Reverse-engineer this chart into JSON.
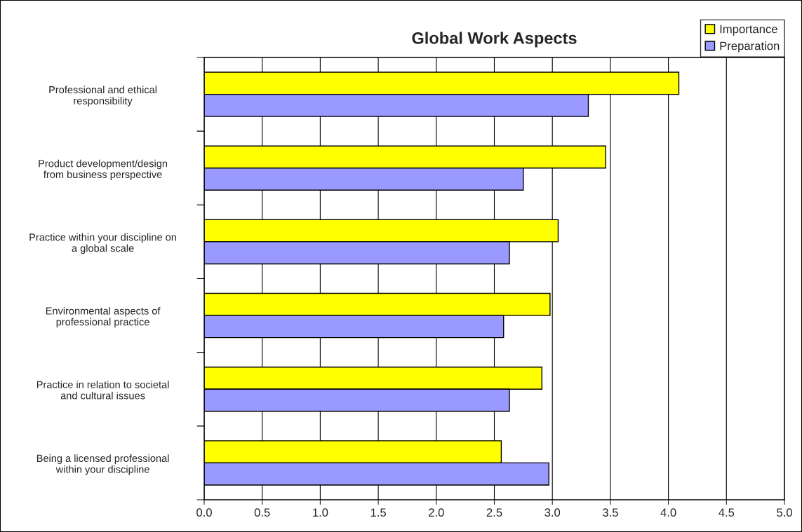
{
  "chart_data": {
    "type": "bar",
    "orientation": "horizontal",
    "title": "Global Work Aspects",
    "categories": [
      "Professional and ethical\nresponsibility",
      "Product development/design\nfrom business perspective",
      "Practice within your discipline on\na global scale",
      "Environmental aspects of\nprofessional practice",
      "Practice in relation to societal\nand cultural issues",
      "Being a licensed professional\nwithin your discipline"
    ],
    "series": [
      {
        "name": "Importance",
        "color": "#ffff00",
        "values": [
          4.09,
          3.46,
          3.05,
          2.98,
          2.91,
          2.56
        ]
      },
      {
        "name": "Preparation",
        "color": "#9999ff",
        "values": [
          3.31,
          2.75,
          2.63,
          2.58,
          2.63,
          2.97
        ]
      }
    ],
    "xlim": [
      0,
      5
    ],
    "xticks": [
      {
        "value": 0,
        "label": "0.0"
      },
      {
        "value": 0.5,
        "label": "0.5"
      },
      {
        "value": 1,
        "label": "1.0"
      },
      {
        "value": 1.5,
        "label": "1.5"
      },
      {
        "value": 2,
        "label": "2.0"
      },
      {
        "value": 2.5,
        "label": "2.5"
      },
      {
        "value": 3,
        "label": "3.0"
      },
      {
        "value": 3.5,
        "label": "3.5"
      },
      {
        "value": 4,
        "label": "4.0"
      },
      {
        "value": 4.5,
        "label": "4.5"
      },
      {
        "value": 5,
        "label": "5.0"
      }
    ],
    "grid": "x",
    "legend": "top right"
  }
}
